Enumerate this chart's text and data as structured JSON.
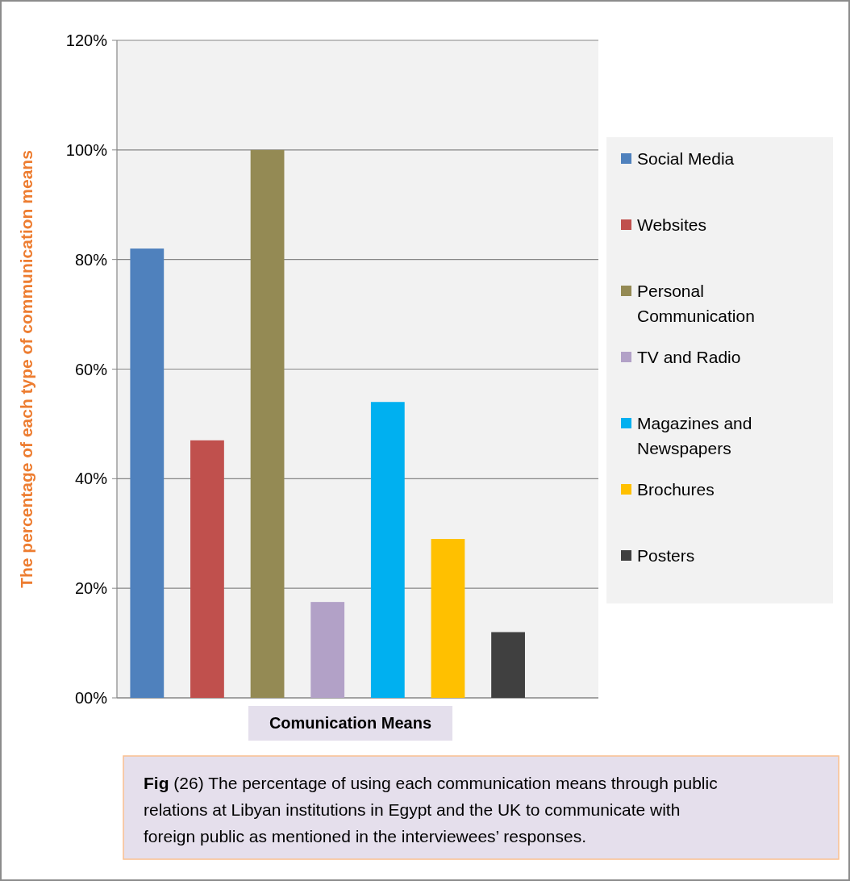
{
  "chart_data": {
    "type": "bar",
    "categories": [
      null
    ],
    "series": [
      {
        "name": "Social Media",
        "color": "#4f81bd",
        "values": [
          82
        ]
      },
      {
        "name": "Websites",
        "color": "#c0504d",
        "values": [
          47
        ]
      },
      {
        "name": "Personal Communication",
        "color": "#948a54",
        "values": [
          100
        ]
      },
      {
        "name": "TV and Radio",
        "color": "#b2a1c7",
        "values": [
          17.5
        ]
      },
      {
        "name": "Magazines and Newspapers",
        "color": "#00b0f0",
        "values": [
          54
        ]
      },
      {
        "name": "Brochures",
        "color": "#ffc000",
        "values": [
          29
        ]
      },
      {
        "name": "Posters",
        "color": "#404040",
        "values": [
          12
        ]
      }
    ],
    "ylabel": "The percentage of each type of communication means",
    "xlabel": "Comunication Means",
    "ylim": [
      0,
      120
    ],
    "yticks": [
      {
        "value": 0,
        "label": "00%"
      },
      {
        "value": 20,
        "label": "20%"
      },
      {
        "value": 40,
        "label": "40%"
      },
      {
        "value": 60,
        "label": "60%"
      },
      {
        "value": 80,
        "label": "80%"
      },
      {
        "value": 100,
        "label": "100%"
      },
      {
        "value": 120,
        "label": "120%"
      }
    ],
    "grid": "y",
    "legend": "right",
    "annotations": [
      "Fig (26) The percentage of using each communication means through public relations at Libyan institutions in Egypt and the UK to communicate with foreign public as mentioned in the interviewees’ responses."
    ]
  }
}
